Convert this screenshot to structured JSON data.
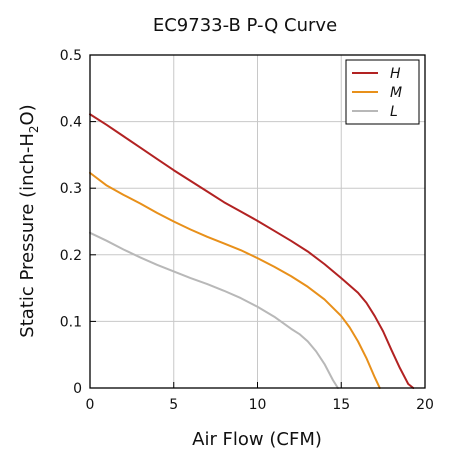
{
  "chart_data": {
    "type": "line",
    "title": "EC9733-B P-Q Curve",
    "xlabel": "Air Flow (CFM)",
    "ylabel": {
      "main": "Static Pressure (inch-H",
      "subscript": "2",
      "suffix": "O)"
    },
    "xlim": [
      0,
      20
    ],
    "ylim": [
      0,
      0.5
    ],
    "x_ticks": [
      "0",
      "5",
      "10",
      "15",
      "20"
    ],
    "y_ticks": [
      "0",
      "0.1",
      "0.2",
      "0.3",
      "0.4",
      "0.5"
    ],
    "grid": true,
    "legend_position": "top-right",
    "series": [
      {
        "name": "H",
        "color": "#b22222",
        "points": [
          [
            0,
            0.411
          ],
          [
            1,
            0.395
          ],
          [
            2,
            0.378
          ],
          [
            3,
            0.361
          ],
          [
            4,
            0.344
          ],
          [
            5,
            0.327
          ],
          [
            6,
            0.311
          ],
          [
            7,
            0.295
          ],
          [
            8,
            0.279
          ],
          [
            9,
            0.265
          ],
          [
            10,
            0.251
          ],
          [
            11,
            0.236
          ],
          [
            12,
            0.221
          ],
          [
            13,
            0.205
          ],
          [
            14,
            0.186
          ],
          [
            15,
            0.165
          ],
          [
            16,
            0.143
          ],
          [
            16.5,
            0.128
          ],
          [
            17,
            0.108
          ],
          [
            17.5,
            0.085
          ],
          [
            18,
            0.057
          ],
          [
            18.5,
            0.03
          ],
          [
            19,
            0.006
          ],
          [
            19.3,
            0.0
          ]
        ]
      },
      {
        "name": "M",
        "color": "#e8901a",
        "points": [
          [
            0,
            0.323
          ],
          [
            1,
            0.304
          ],
          [
            2,
            0.29
          ],
          [
            3,
            0.277
          ],
          [
            4,
            0.263
          ],
          [
            5,
            0.25
          ],
          [
            6,
            0.238
          ],
          [
            7,
            0.227
          ],
          [
            8,
            0.217
          ],
          [
            9,
            0.207
          ],
          [
            10,
            0.195
          ],
          [
            11,
            0.182
          ],
          [
            12,
            0.168
          ],
          [
            13,
            0.152
          ],
          [
            14,
            0.133
          ],
          [
            15,
            0.108
          ],
          [
            15.5,
            0.091
          ],
          [
            16,
            0.07
          ],
          [
            16.5,
            0.045
          ],
          [
            17,
            0.016
          ],
          [
            17.3,
            0.0
          ]
        ]
      },
      {
        "name": "L",
        "color": "#b8b8b8",
        "points": [
          [
            0,
            0.233
          ],
          [
            1,
            0.221
          ],
          [
            2,
            0.208
          ],
          [
            3,
            0.196
          ],
          [
            4,
            0.185
          ],
          [
            5,
            0.175
          ],
          [
            6,
            0.165
          ],
          [
            7,
            0.156
          ],
          [
            8,
            0.146
          ],
          [
            9,
            0.135
          ],
          [
            10,
            0.122
          ],
          [
            11,
            0.107
          ],
          [
            12,
            0.089
          ],
          [
            12.5,
            0.081
          ],
          [
            13,
            0.07
          ],
          [
            13.5,
            0.055
          ],
          [
            14,
            0.036
          ],
          [
            14.5,
            0.012
          ],
          [
            14.8,
            0.0
          ]
        ]
      }
    ]
  }
}
